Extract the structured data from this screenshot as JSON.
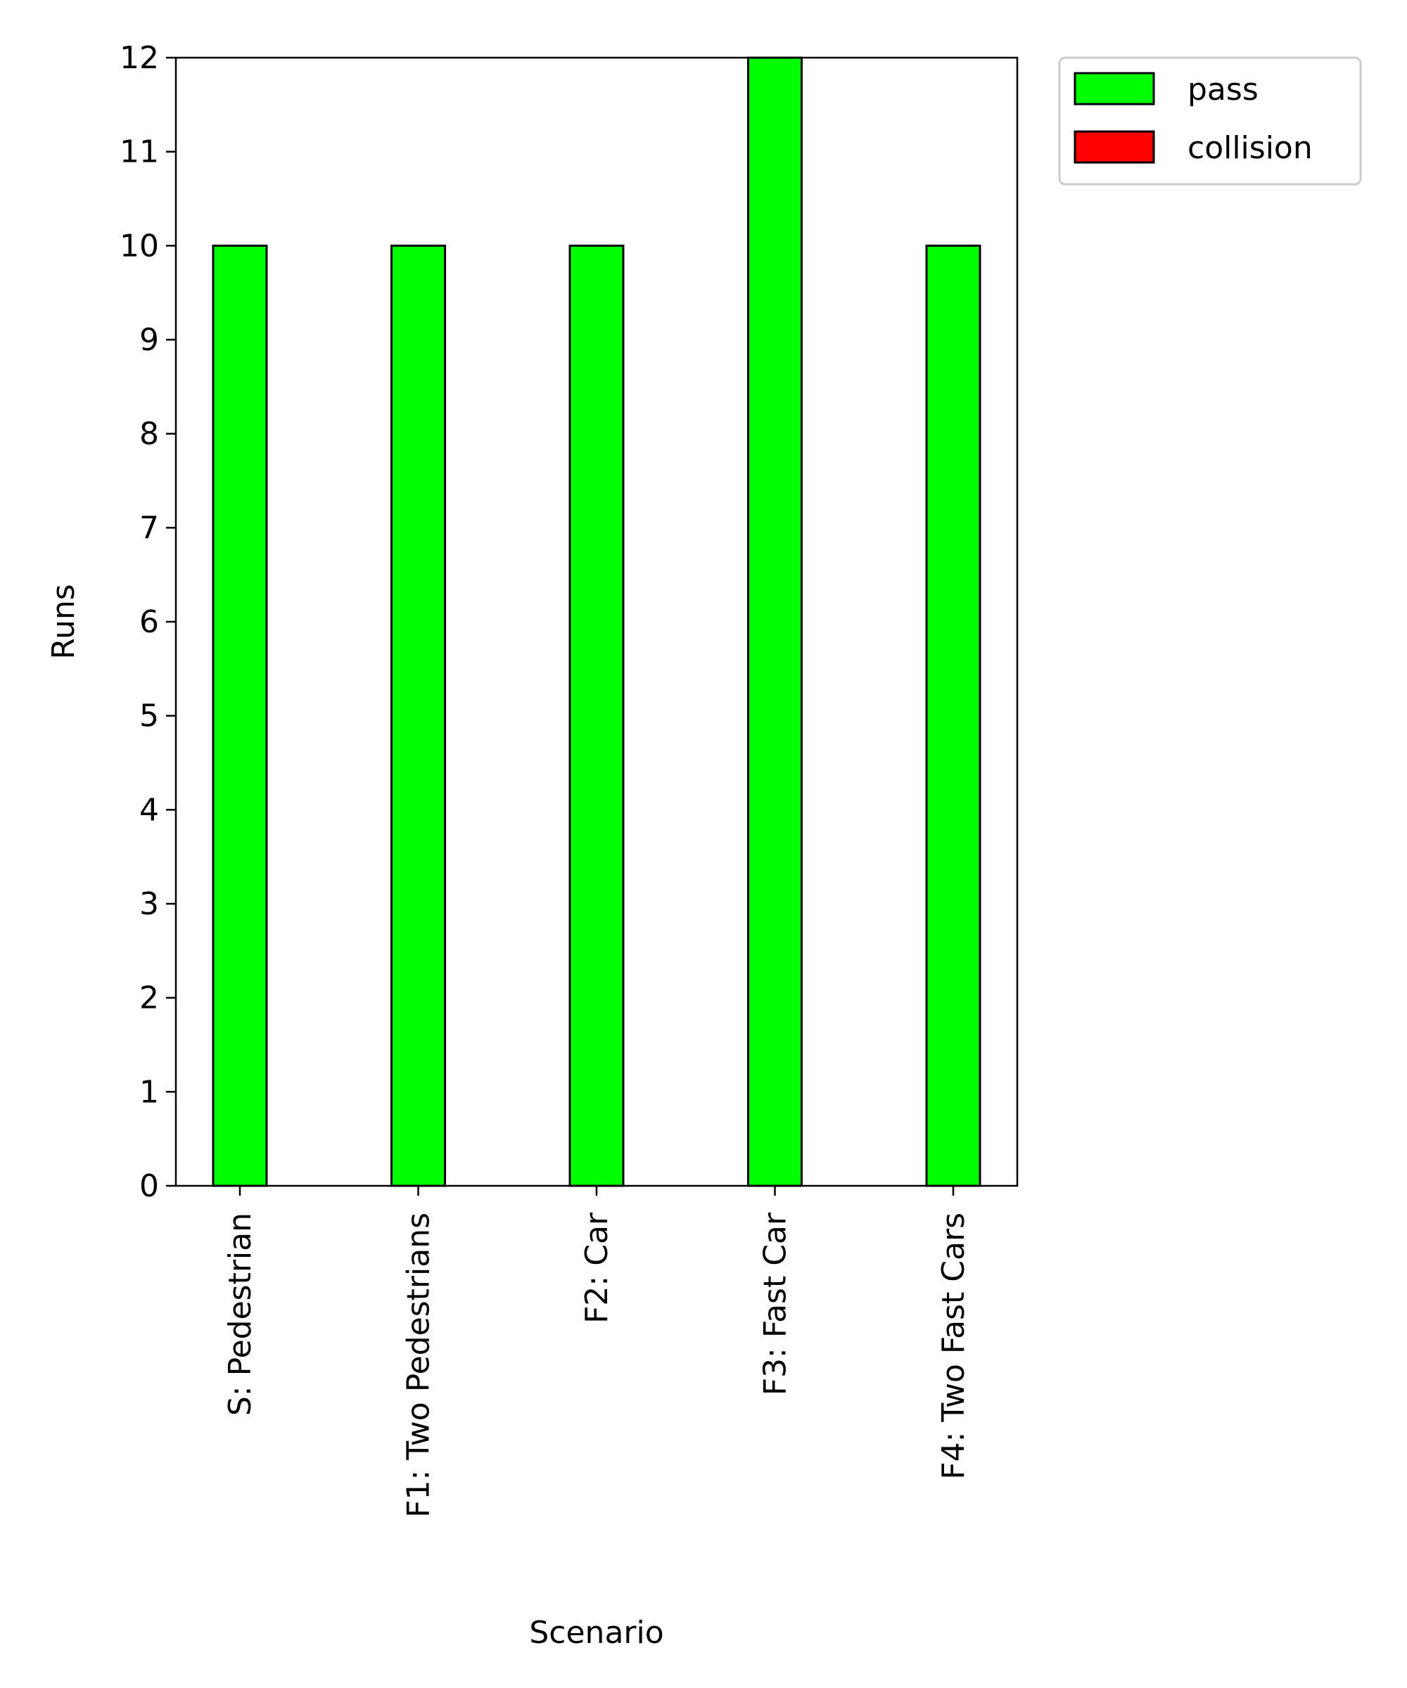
{
  "chart_data": {
    "type": "bar",
    "categories": [
      "S: Pedestrian",
      "F1: Two Pedestrians",
      "F2: Car",
      "F3: Fast Car",
      "F4: Two Fast Cars"
    ],
    "series": [
      {
        "name": "pass",
        "values": [
          10,
          10,
          10,
          12,
          10
        ],
        "color": "#00ff00"
      },
      {
        "name": "collision",
        "values": [
          0,
          0,
          0,
          0,
          0
        ],
        "color": "#ff0000"
      }
    ],
    "stacked": true,
    "title": "",
    "xlabel": "Scenario",
    "ylabel": "Runs",
    "ylim": [
      0,
      12
    ],
    "yticks": [
      "0",
      "1",
      "2",
      "3",
      "4",
      "5",
      "6",
      "7",
      "8",
      "9",
      "10",
      "11",
      "12"
    ],
    "grid": false,
    "legend_position": "outside-top-right",
    "edge_color": "#000000"
  }
}
